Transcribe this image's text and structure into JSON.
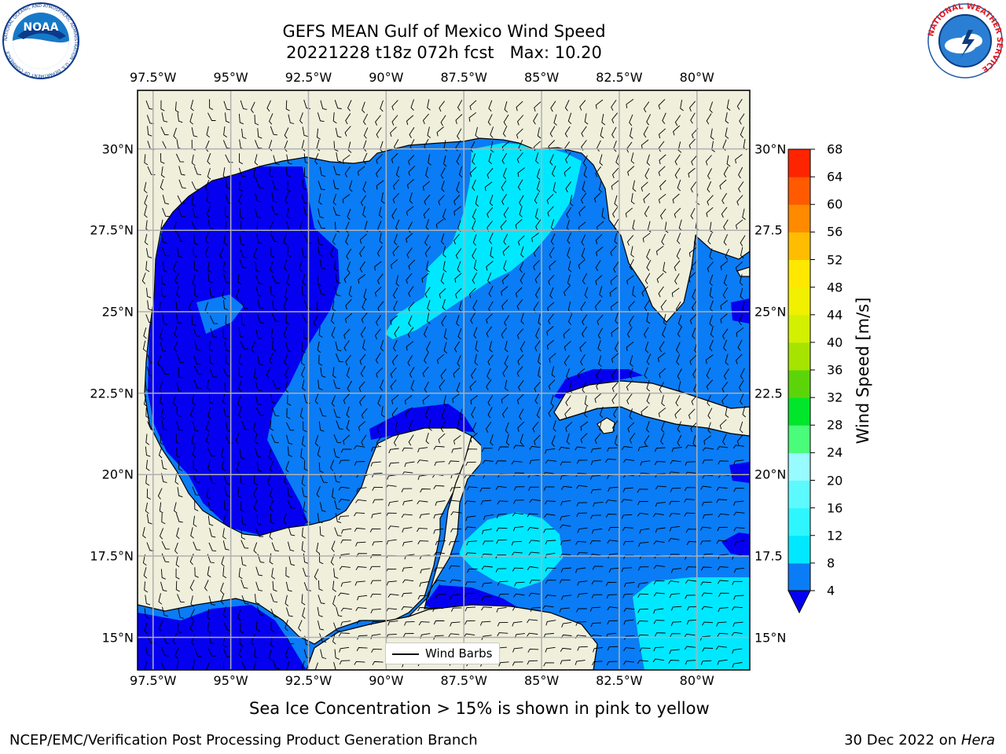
{
  "header": {
    "title_line1": "GEFS MEAN Gulf of Mexico Wind Speed",
    "title_line2": "20221228 t18z 072h fcst   Max: 10.20"
  },
  "logos": {
    "noaa": {
      "text": "NOAA",
      "ring_text": "NATIONAL OCEANIC AND ATMOSPHERIC ADMINISTRATION · U.S. DEPARTMENT OF COMMERCE",
      "colors": {
        "ring": "#0a3a8c",
        "sky": "#1679c7",
        "wave": "#ffffff"
      }
    },
    "nws": {
      "ring_text": "NATIONAL WEATHER SERVICE",
      "colors": {
        "ring_text": "#e01b22",
        "sky": "#2a7fd4"
      }
    }
  },
  "map": {
    "lon_ticks": [
      "97.5°W",
      "95°W",
      "92.5°W",
      "90°W",
      "87.5°W",
      "85°W",
      "82.5°W",
      "80°W"
    ],
    "lat_ticks_left": [
      "30°N",
      "27.5°N",
      "25°N",
      "22.5°N",
      "20°N",
      "17.5°N",
      "15°N"
    ],
    "lat_ticks_right": [
      "30°N",
      "27.5",
      "25°N",
      "22.5",
      "20°N",
      "17.5",
      "15°N"
    ],
    "extent": {
      "lon_min": -98,
      "lon_max": -78.3,
      "lat_min": 14.0,
      "lat_max": 31.8
    },
    "colors": {
      "land": "#efefdc",
      "grid": "#b0b0b0",
      "coast": "#000000"
    },
    "legend_label": "Wind Barbs"
  },
  "colorbar": {
    "label": "Wind Speed [m/s]",
    "ticks": [
      "4",
      "8",
      "12",
      "16",
      "20",
      "24",
      "28",
      "32",
      "36",
      "40",
      "44",
      "48",
      "52",
      "56",
      "60",
      "64",
      "68"
    ],
    "colors": [
      "#0a7cf5",
      "#00e8ff",
      "#2ef6ff",
      "#5cfaff",
      "#97fbff",
      "#49fc7a",
      "#00e62a",
      "#5bd50a",
      "#a6e400",
      "#d2f000",
      "#f0f000",
      "#ffe800",
      "#ffbc00",
      "#ff8a00",
      "#ff5a00",
      "#ff2400"
    ],
    "under_color": "#0500f0"
  },
  "chart_data": {
    "type": "heatmap",
    "title": "GEFS MEAN Gulf of Mexico Wind Speed",
    "colorbar_label": "Wind Speed [m/s]",
    "levels": [
      4,
      8,
      12,
      16,
      20,
      24,
      28,
      32,
      36,
      40,
      44,
      48,
      52,
      56,
      60,
      64,
      68
    ],
    "max": 10.2,
    "x_range": [
      "97.5°W",
      "80°W"
    ],
    "y_range": [
      "15°N",
      "30°N"
    ]
  },
  "caption": "Sea Ice Concentration > 15% is shown in pink to yellow",
  "footer": {
    "left": "NCEP/EMC/Verification Post Processing Product Generation Branch",
    "date": "30 Dec 2022 on ",
    "host": "Hera"
  }
}
